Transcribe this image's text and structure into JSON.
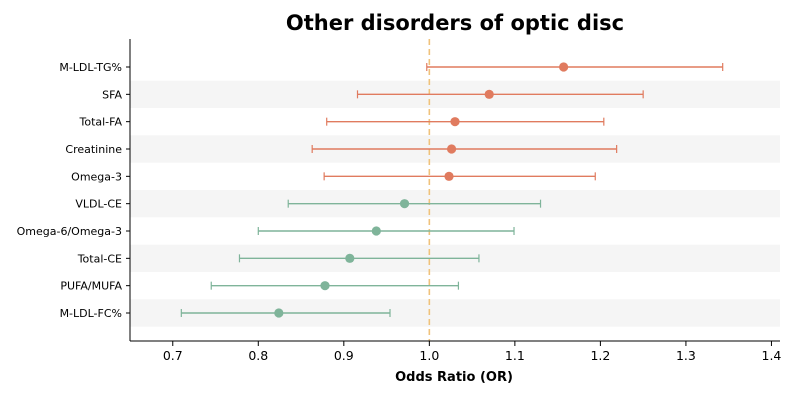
{
  "chart_data": {
    "type": "scatter",
    "subtype": "forest-plot",
    "title": "Other disorders of optic disc",
    "xlabel": "Odds Ratio (OR)",
    "ylabel": "",
    "xlim": [
      0.65,
      1.41
    ],
    "xticks": [
      0.7,
      0.8,
      0.9,
      1.0,
      1.1,
      1.2,
      1.3,
      1.4
    ],
    "xtick_labels": [
      "0.7",
      "0.8",
      "0.9",
      "1.0",
      "1.1",
      "1.2",
      "1.3",
      "1.4"
    ],
    "reference_line": 1.0,
    "grid": false,
    "row_banding": true,
    "colors": {
      "risk": "#e07b5f",
      "protective": "#7fb49a",
      "reference": "#f0c27a",
      "band": "#f5f5f5"
    },
    "rows": [
      {
        "label": "M-LDL-TG%",
        "or": 1.157,
        "lower": 0.997,
        "upper": 1.343,
        "group": "risk"
      },
      {
        "label": "SFA",
        "or": 1.07,
        "lower": 0.916,
        "upper": 1.25,
        "group": "risk"
      },
      {
        "label": "Total-FA",
        "or": 1.03,
        "lower": 0.88,
        "upper": 1.204,
        "group": "risk"
      },
      {
        "label": "Creatinine",
        "or": 1.026,
        "lower": 0.863,
        "upper": 1.219,
        "group": "risk"
      },
      {
        "label": "Omega-3",
        "or": 1.023,
        "lower": 0.877,
        "upper": 1.194,
        "group": "risk"
      },
      {
        "label": "VLDL-CE",
        "or": 0.971,
        "lower": 0.835,
        "upper": 1.13,
        "group": "protective"
      },
      {
        "label": "Omega-6/Omega-3",
        "or": 0.938,
        "lower": 0.8,
        "upper": 1.099,
        "group": "protective"
      },
      {
        "label": "Total-CE",
        "or": 0.907,
        "lower": 0.778,
        "upper": 1.058,
        "group": "protective"
      },
      {
        "label": "PUFA/MUFA",
        "or": 0.878,
        "lower": 0.745,
        "upper": 1.034,
        "group": "protective"
      },
      {
        "label": "M-LDL-FC%",
        "or": 0.824,
        "lower": 0.71,
        "upper": 0.954,
        "group": "protective"
      }
    ]
  }
}
